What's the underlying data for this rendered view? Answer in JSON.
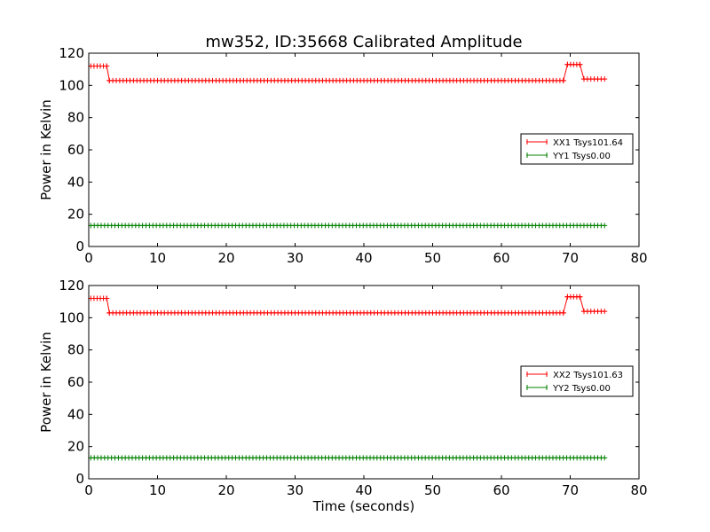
{
  "chart_data": [
    {
      "type": "line",
      "title": "mw352, ID:35668 Calibrated Amplitude",
      "xlabel": "",
      "ylabel": "Power in Kelvin",
      "xlim": [
        0,
        80
      ],
      "ylim": [
        0,
        120
      ],
      "xticks": [
        "0",
        "10",
        "20",
        "30",
        "40",
        "50",
        "60",
        "70",
        "80"
      ],
      "yticks": [
        "0",
        "20",
        "40",
        "60",
        "80",
        "100",
        "120"
      ],
      "grid": false,
      "legend_position": "right",
      "series": [
        {
          "name": "XX1 Tsys101.64",
          "color": "#ff0000",
          "marker": "+",
          "segments": [
            {
              "x_start": 0.3,
              "x_end": 2.6,
              "y_start": 112,
              "y_end": 112
            },
            {
              "x_start": 2.6,
              "x_end": 3.0,
              "y_start": 112,
              "y_end": 103
            },
            {
              "x_start": 3.0,
              "x_end": 69.0,
              "y_start": 103,
              "y_end": 103
            },
            {
              "x_start": 69.0,
              "x_end": 69.6,
              "y_start": 103,
              "y_end": 113
            },
            {
              "x_start": 69.6,
              "x_end": 71.4,
              "y_start": 113,
              "y_end": 113
            },
            {
              "x_start": 71.4,
              "x_end": 72.0,
              "y_start": 113,
              "y_end": 104
            },
            {
              "x_start": 72.0,
              "x_end": 75.0,
              "y_start": 104,
              "y_end": 104
            }
          ]
        },
        {
          "name": "YY1 Tsys0.00",
          "color": "#008000",
          "marker": "+",
          "segments": [
            {
              "x_start": 0.3,
              "x_end": 75.0,
              "y_start": 13,
              "y_end": 13
            }
          ]
        }
      ]
    },
    {
      "type": "line",
      "title": "",
      "xlabel": "Time (seconds)",
      "ylabel": "Power in Kelvin",
      "xlim": [
        0,
        80
      ],
      "ylim": [
        0,
        120
      ],
      "xticks": [
        "0",
        "10",
        "20",
        "30",
        "40",
        "50",
        "60",
        "70",
        "80"
      ],
      "yticks": [
        "0",
        "20",
        "40",
        "60",
        "80",
        "100",
        "120"
      ],
      "grid": false,
      "legend_position": "right",
      "series": [
        {
          "name": "XX2 Tsys101.63",
          "color": "#ff0000",
          "marker": "+",
          "segments": [
            {
              "x_start": 0.3,
              "x_end": 2.6,
              "y_start": 112,
              "y_end": 112
            },
            {
              "x_start": 2.6,
              "x_end": 3.0,
              "y_start": 112,
              "y_end": 103
            },
            {
              "x_start": 3.0,
              "x_end": 69.0,
              "y_start": 103,
              "y_end": 103
            },
            {
              "x_start": 69.0,
              "x_end": 69.6,
              "y_start": 103,
              "y_end": 113
            },
            {
              "x_start": 69.6,
              "x_end": 71.4,
              "y_start": 113,
              "y_end": 113
            },
            {
              "x_start": 71.4,
              "x_end": 72.0,
              "y_start": 113,
              "y_end": 104
            },
            {
              "x_start": 72.0,
              "x_end": 75.0,
              "y_start": 104,
              "y_end": 104
            }
          ]
        },
        {
          "name": "YY2 Tsys0.00",
          "color": "#008000",
          "marker": "+",
          "segments": [
            {
              "x_start": 0.3,
              "x_end": 75.0,
              "y_start": 13,
              "y_end": 13
            }
          ]
        }
      ]
    }
  ]
}
